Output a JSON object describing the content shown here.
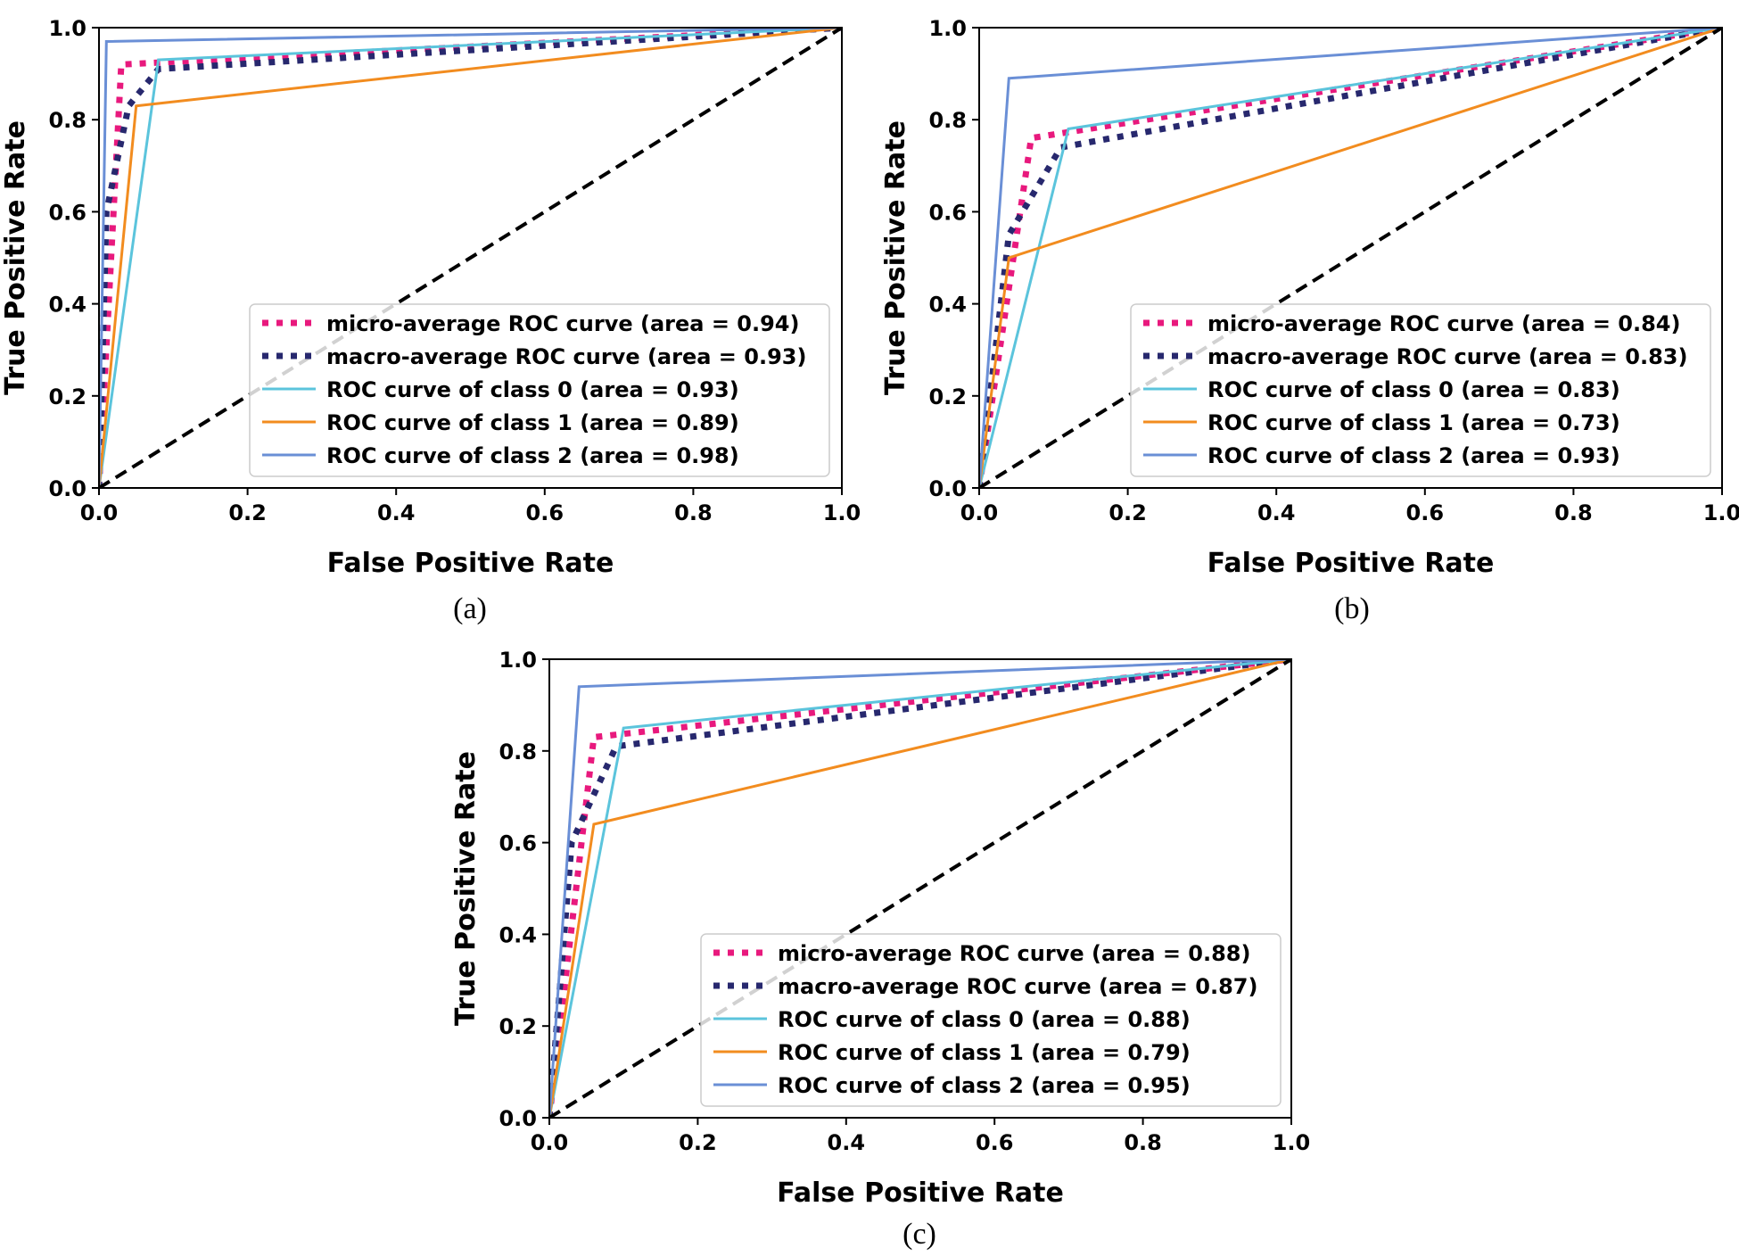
{
  "chart_data": [
    {
      "type": "line",
      "caption": "(a)",
      "xlabel": "False Positive Rate",
      "ylabel": "True Positive Rate",
      "xlim": [
        0,
        1
      ],
      "ylim": [
        0,
        1
      ],
      "xticks": [
        "0.0",
        "0.2",
        "0.4",
        "0.6",
        "0.8",
        "1.0"
      ],
      "yticks": [
        "0.0",
        "0.2",
        "0.4",
        "0.6",
        "0.8",
        "1.0"
      ],
      "legend_position": "lower-right",
      "series": [
        {
          "name": "micro-average ROC curve (area = 0.94)",
          "color": "#e8197d",
          "style": "dotted",
          "x": [
            0,
            0.03,
            1
          ],
          "y": [
            0,
            0.92,
            1
          ]
        },
        {
          "name": "macro-average ROC curve (area = 0.93)",
          "color": "#27286e",
          "style": "dotted",
          "x": [
            0,
            0.01,
            0.04,
            0.08,
            1
          ],
          "y": [
            0,
            0.6,
            0.83,
            0.91,
            1
          ]
        },
        {
          "name": "ROC curve of class 0 (area = 0.93)",
          "color": "#5bc4dc",
          "style": "solid",
          "x": [
            0,
            0.08,
            1
          ],
          "y": [
            0,
            0.93,
            1
          ]
        },
        {
          "name": "ROC curve of class 1 (area = 0.89)",
          "color": "#f28c1f",
          "style": "solid",
          "x": [
            0,
            0.05,
            1
          ],
          "y": [
            0,
            0.83,
            1
          ]
        },
        {
          "name": "ROC curve of class 2 (area = 0.98)",
          "color": "#6a8fd6",
          "style": "solid",
          "x": [
            0,
            0.01,
            1
          ],
          "y": [
            0,
            0.97,
            1
          ]
        },
        {
          "name": "chance",
          "color": "#000000",
          "style": "dashed",
          "x": [
            0,
            1
          ],
          "y": [
            0,
            1
          ]
        }
      ]
    },
    {
      "type": "line",
      "caption": "(b)",
      "xlabel": "False Positive Rate",
      "ylabel": "True Positive Rate",
      "xlim": [
        0,
        1
      ],
      "ylim": [
        0,
        1
      ],
      "xticks": [
        "0.0",
        "0.2",
        "0.4",
        "0.6",
        "0.8",
        "1.0"
      ],
      "yticks": [
        "0.0",
        "0.2",
        "0.4",
        "0.6",
        "0.8",
        "1.0"
      ],
      "legend_position": "lower-right",
      "series": [
        {
          "name": "micro-average ROC curve (area = 0.84)",
          "color": "#e8197d",
          "style": "dotted",
          "x": [
            0,
            0.07,
            1
          ],
          "y": [
            0,
            0.76,
            1
          ]
        },
        {
          "name": "macro-average ROC curve (area = 0.83)",
          "color": "#27286e",
          "style": "dotted",
          "x": [
            0,
            0.04,
            0.11,
            1
          ],
          "y": [
            0,
            0.55,
            0.74,
            1
          ]
        },
        {
          "name": "ROC curve of class 0 (area = 0.83)",
          "color": "#5bc4dc",
          "style": "solid",
          "x": [
            0,
            0.12,
            1
          ],
          "y": [
            0,
            0.78,
            1
          ]
        },
        {
          "name": "ROC curve of class 1 (area = 0.73)",
          "color": "#f28c1f",
          "style": "solid",
          "x": [
            0,
            0.04,
            1
          ],
          "y": [
            0,
            0.5,
            1
          ]
        },
        {
          "name": "ROC curve of class 2 (area = 0.93)",
          "color": "#6a8fd6",
          "style": "solid",
          "x": [
            0,
            0.04,
            1
          ],
          "y": [
            0,
            0.89,
            1
          ]
        },
        {
          "name": "chance",
          "color": "#000000",
          "style": "dashed",
          "x": [
            0,
            1
          ],
          "y": [
            0,
            1
          ]
        }
      ]
    },
    {
      "type": "line",
      "caption": "(c)",
      "xlabel": "False Positive Rate",
      "ylabel": "True Positive Rate",
      "xlim": [
        0,
        1
      ],
      "ylim": [
        0,
        1
      ],
      "xticks": [
        "0.0",
        "0.2",
        "0.4",
        "0.6",
        "0.8",
        "1.0"
      ],
      "yticks": [
        "0.0",
        "0.2",
        "0.4",
        "0.6",
        "0.8",
        "1.0"
      ],
      "legend_position": "lower-right",
      "series": [
        {
          "name": "micro-average ROC curve (area = 0.88)",
          "color": "#e8197d",
          "style": "dotted",
          "x": [
            0,
            0.06,
            1
          ],
          "y": [
            0,
            0.83,
            1
          ]
        },
        {
          "name": "macro-average ROC curve (area = 0.87)",
          "color": "#27286e",
          "style": "dotted",
          "x": [
            0,
            0.03,
            0.09,
            1
          ],
          "y": [
            0,
            0.6,
            0.81,
            1
          ]
        },
        {
          "name": "ROC curve of class 0 (area = 0.88)",
          "color": "#5bc4dc",
          "style": "solid",
          "x": [
            0,
            0.1,
            1
          ],
          "y": [
            0,
            0.85,
            1
          ]
        },
        {
          "name": "ROC curve of class 1 (area = 0.79)",
          "color": "#f28c1f",
          "style": "solid",
          "x": [
            0,
            0.06,
            1
          ],
          "y": [
            0,
            0.64,
            1
          ]
        },
        {
          "name": "ROC curve of class 2 (area = 0.95)",
          "color": "#6a8fd6",
          "style": "solid",
          "x": [
            0,
            0.04,
            1
          ],
          "y": [
            0,
            0.94,
            1
          ]
        },
        {
          "name": "chance",
          "color": "#000000",
          "style": "dashed",
          "x": [
            0,
            1
          ],
          "y": [
            0,
            1
          ]
        }
      ]
    }
  ]
}
